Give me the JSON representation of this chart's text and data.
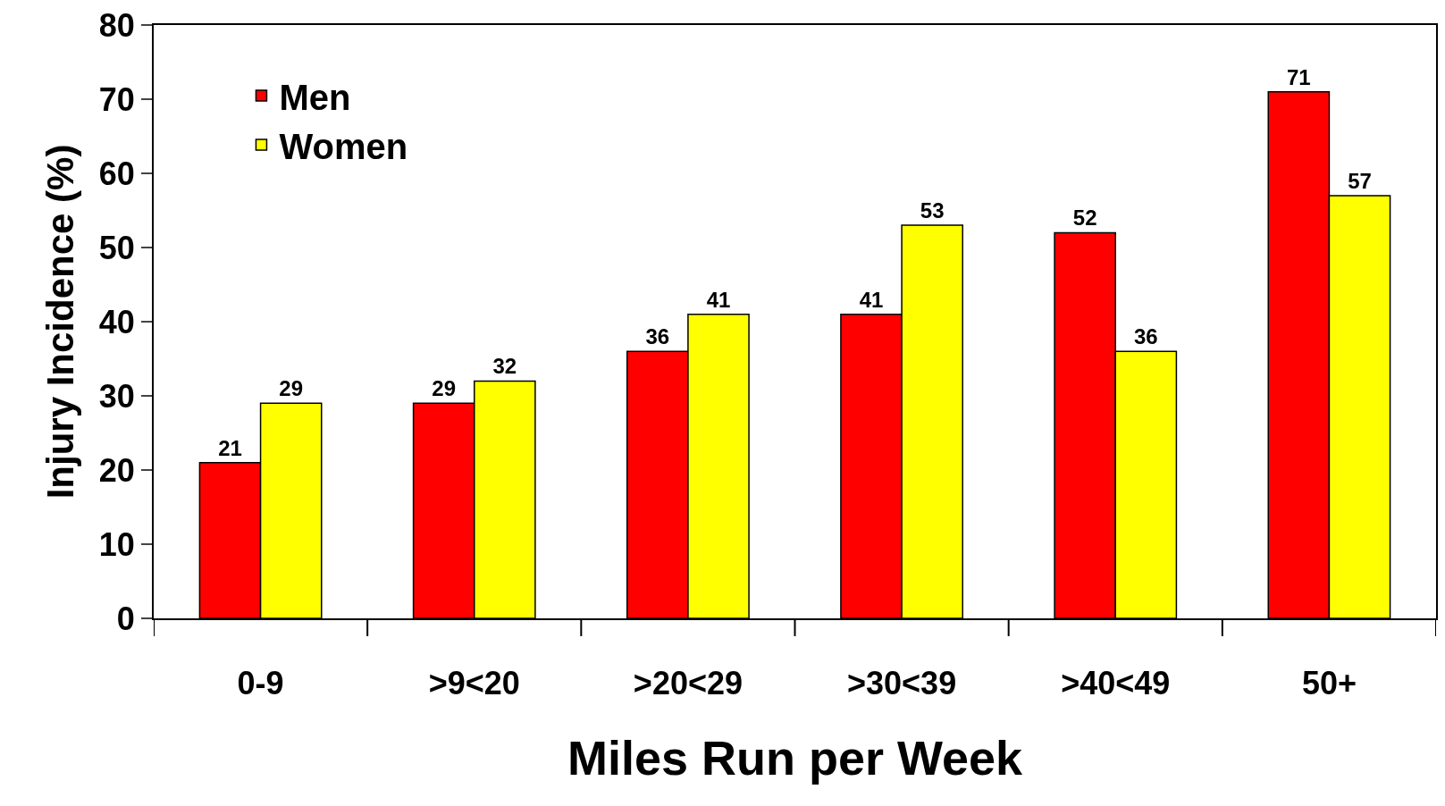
{
  "chart_data": {
    "type": "bar",
    "xlabel": "Miles Run per Week",
    "ylabel": "Injury Incidence (%)",
    "categories": [
      "0-9",
      ">9<20",
      ">20<29",
      ">30<39",
      ">40<49",
      "50+"
    ],
    "series": [
      {
        "name": "Men",
        "color": "#ff0000",
        "values": [
          21,
          29,
          36,
          41,
          52,
          71
        ]
      },
      {
        "name": "Women",
        "color": "#ffff00",
        "values": [
          29,
          32,
          41,
          53,
          36,
          57
        ]
      }
    ],
    "ylim": [
      0,
      80
    ],
    "yticks": [
      0,
      10,
      20,
      30,
      40,
      50,
      60,
      70,
      80
    ],
    "legend": "top left",
    "data_labels": true
  }
}
